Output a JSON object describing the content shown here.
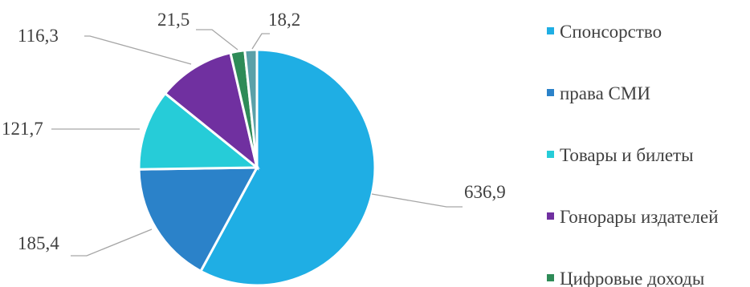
{
  "chart_data": {
    "type": "pie",
    "title": "",
    "legend_position": "right",
    "categories": [
      "Спонсорство",
      "права СМИ",
      "Товары и билеты",
      "Гонорары издателей",
      "Цифровые доходы",
      ""
    ],
    "values": [
      636.9,
      185.4,
      121.7,
      116.3,
      21.5,
      18.2
    ],
    "value_labels": [
      "636,9",
      "185,4",
      "121,7",
      "116,3",
      "21,5",
      "18,2"
    ],
    "colors": [
      "#1faee4",
      "#2b82c9",
      "#26ccd8",
      "#7030a0",
      "#2e8b57",
      "#5aa0a8"
    ],
    "legend": [
      {
        "label": "Спонсорство",
        "color": "#1faee4"
      },
      {
        "label": "права СМИ",
        "color": "#2b82c9"
      },
      {
        "label": "Товары и билеты",
        "color": "#26ccd8"
      },
      {
        "label": "Гонорары издателей",
        "color": "#7030a0"
      },
      {
        "label": "Цифровые доходы",
        "color": "#2e8b57"
      }
    ]
  }
}
